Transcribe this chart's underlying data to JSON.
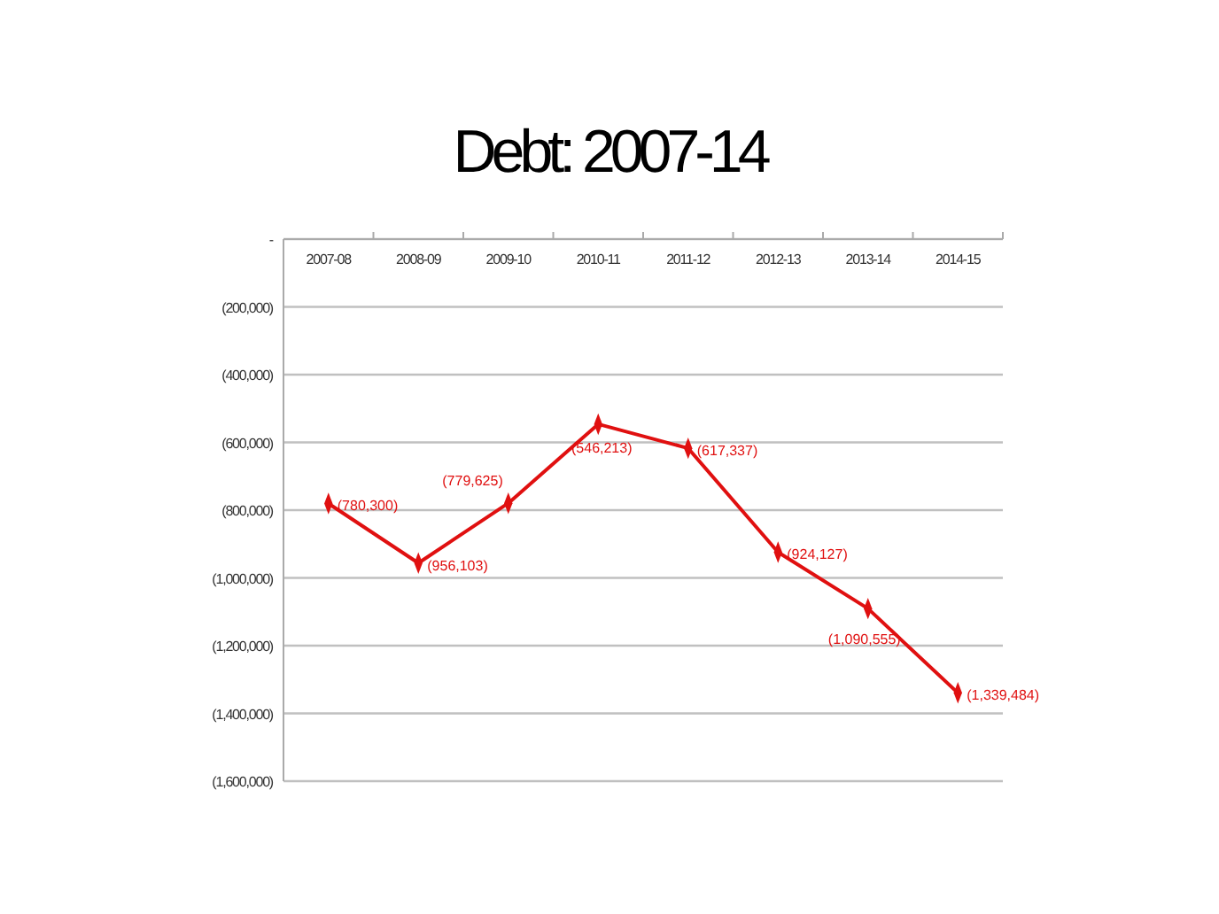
{
  "chart_data": {
    "type": "line",
    "title": "Debt: 2007-14",
    "categories": [
      "2007-08",
      "2008-09",
      "2009-10",
      "2010-11",
      "2011-12",
      "2012-13",
      "2013-14",
      "2014-15"
    ],
    "series": [
      {
        "color": "#e01010",
        "values": [
          -780300,
          -956103,
          -779625,
          -546213,
          -617337,
          -924127,
          -1090555,
          -1339484
        ],
        "value_labels": [
          "(780,300)",
          "(956,103)",
          "(779,625)",
          "(546,213)",
          "(617,337)",
          "(924,127)",
          "(1,090,555)",
          "(1,339,484)"
        ]
      }
    ],
    "ylim": [
      -1600000,
      0
    ],
    "yticks": [
      {
        "value": 0,
        "label": "-"
      },
      {
        "value": -200000,
        "label": "(200,000)"
      },
      {
        "value": -400000,
        "label": "(400,000)"
      },
      {
        "value": -600000,
        "label": "(600,000)"
      },
      {
        "value": -800000,
        "label": "(800,000)"
      },
      {
        "value": -1000000,
        "label": "(1,000,000)"
      },
      {
        "value": -1200000,
        "label": "(1,200,000)"
      },
      {
        "value": -1400000,
        "label": "(1,400,000)"
      },
      {
        "value": -1600000,
        "label": "(1,600,000)"
      }
    ],
    "grid": "y",
    "marker": "diamond",
    "line_style": "solid"
  }
}
